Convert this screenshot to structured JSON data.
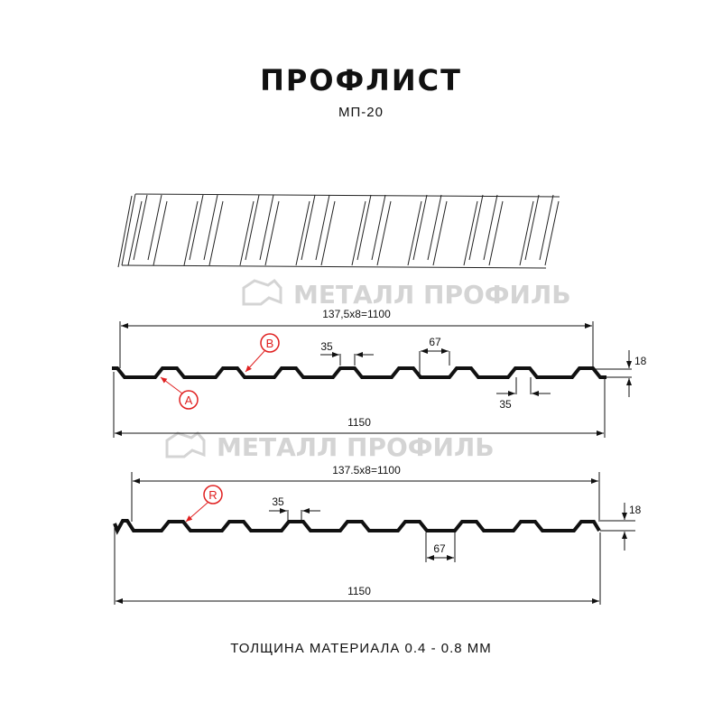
{
  "title": "ПРОФЛИСТ",
  "subtitle": "МП-20",
  "footer": "ТОЛЩИНА МАТЕРИАЛА 0.4 - 0.8 ММ",
  "watermark": "МЕТАЛЛ ПРОФИЛЬ",
  "profile_a": {
    "pitch_label": "137,5x8=1100",
    "width_label": "1150",
    "top_width_label": "35",
    "bottom_width_top_label": "67",
    "bottom_width_label": "35",
    "height_label": "18",
    "marker_a": "A",
    "marker_b": "B"
  },
  "profile_b": {
    "pitch_label": "137.5x8=1100",
    "width_label": "1150",
    "top_width_label": "35",
    "bottom_width_label": "67",
    "height_label": "18",
    "marker_r": "R"
  },
  "colors": {
    "line": "#111111",
    "marker": "#e02020",
    "watermark": "#d4d4d4"
  }
}
